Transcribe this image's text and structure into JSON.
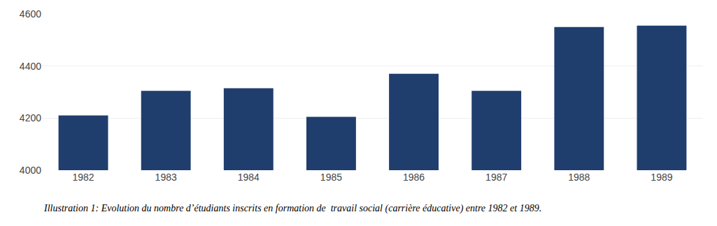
{
  "chart_data": {
    "type": "bar",
    "categories": [
      "1982",
      "1983",
      "1984",
      "1985",
      "1986",
      "1987",
      "1988",
      "1989"
    ],
    "values": [
      4210,
      4305,
      4315,
      4205,
      4370,
      4305,
      4550,
      4555
    ],
    "color": "#1F3E6E",
    "ylim": [
      4000,
      4600
    ],
    "yticks": [
      4000,
      4200,
      4400,
      4600
    ],
    "grid": true,
    "caption": "Illustration 1: Evolution du nombre d’étudiants inscrits en formation de  travail social (carrière éducative) entre 1982 et 1989."
  }
}
